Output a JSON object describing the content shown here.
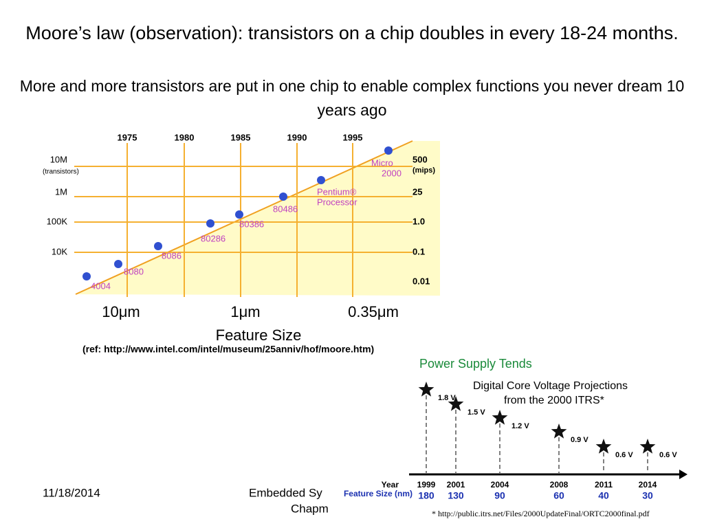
{
  "title": "Moore’s law (observation): transistors on a chip doubles in every 18-24 months.",
  "subtitle": "More and more transistors are put in one chip to enable complex functions you never dream 10 years ago",
  "moore": {
    "years": [
      "1975",
      "1980",
      "1985",
      "1990",
      "1995"
    ],
    "left_labels": [
      "10M",
      "(transistors)",
      "1M",
      "100K",
      "10K"
    ],
    "right_labels": [
      "500",
      "(mips)",
      "25",
      "1.0",
      "0.1",
      "0.01"
    ],
    "chips": [
      "4004",
      "8080",
      "8086",
      "80286",
      "80386",
      "80486",
      "Pentium®",
      "Processor",
      "Micro",
      "2000"
    ],
    "x_labels": [
      "10μm",
      "1μm",
      "0.35μm"
    ],
    "x_title": "Feature Size",
    "ref": "(ref: http://www.intel.com/intel/museum/25anniv/hof/moore.htm)"
  },
  "power": {
    "heading": "Power Supply Tends",
    "title_lines": [
      "Digital Core Voltage Projections",
      "from the 2000 ITRS*"
    ],
    "year_label": "Year",
    "size_label": "Feature Size (nm)",
    "points": [
      {
        "year": "1999",
        "size": "180",
        "voltage": "1.8 V"
      },
      {
        "year": "2001",
        "size": "130",
        "voltage": "1.5 V"
      },
      {
        "year": "2004",
        "size": "90",
        "voltage": "1.2 V"
      },
      {
        "year": "2008",
        "size": "60",
        "voltage": "0.9 V"
      },
      {
        "year": "2011",
        "size": "40",
        "voltage": "0.6 V"
      },
      {
        "year": "2014",
        "size": "30",
        "voltage": "0.6 V"
      }
    ],
    "footnote": "* http://public.itrs.net/Files/2000UpdateFinal/ORTC2000final.pdf"
  },
  "footer": {
    "date": "11/18/2014",
    "center_lines": [
      "Embedded Sy",
      "Chapm"
    ]
  }
}
